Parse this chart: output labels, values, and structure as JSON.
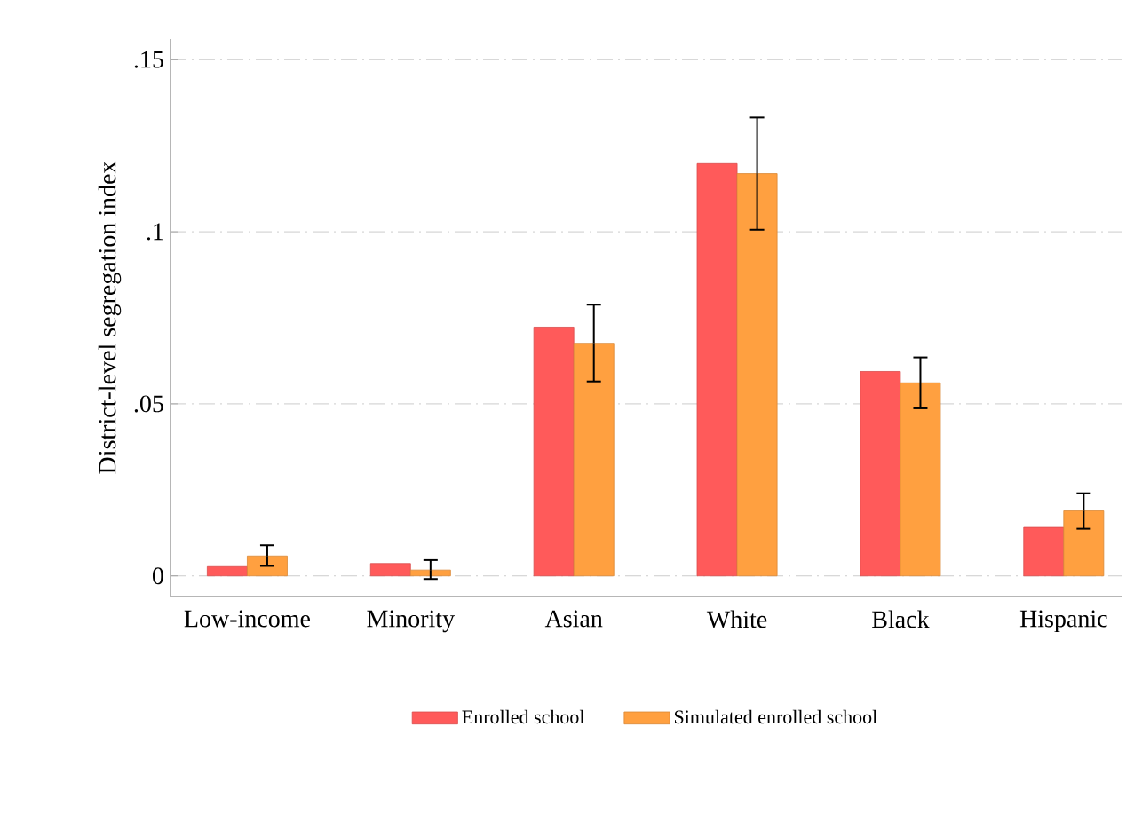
{
  "chart_data": {
    "type": "bar",
    "ylabel": "District-level segregation index",
    "categories": [
      "Low-income",
      "Minority",
      "Asian",
      "White",
      "Black",
      "Hispanic"
    ],
    "series": [
      {
        "name": "Enrolled school",
        "color": "#ff5a5a",
        "values": [
          0.0027,
          0.0036,
          0.0723,
          0.1198,
          0.0594,
          0.0141
        ]
      },
      {
        "name": "Simulated enrolled school",
        "color": "#ffa040",
        "values": [
          0.0058,
          0.0017,
          0.0676,
          0.1169,
          0.0561,
          0.0189
        ],
        "errors": [
          [
            0.0029,
            0.0089
          ],
          [
            -0.0009,
            0.0046
          ],
          [
            0.0565,
            0.0788
          ],
          [
            0.1006,
            0.1332
          ],
          [
            0.0487,
            0.0635
          ],
          [
            0.0137,
            0.024
          ]
        ]
      }
    ],
    "ylim": [
      -0.006,
      0.156
    ],
    "yticks": [
      {
        "value": 0,
        "label": "0"
      },
      {
        "value": 0.05,
        "label": ".05"
      },
      {
        "value": 0.1,
        "label": ".1"
      },
      {
        "value": 0.15,
        "label": ".15"
      }
    ],
    "grid": "y",
    "legend": "bottom"
  }
}
